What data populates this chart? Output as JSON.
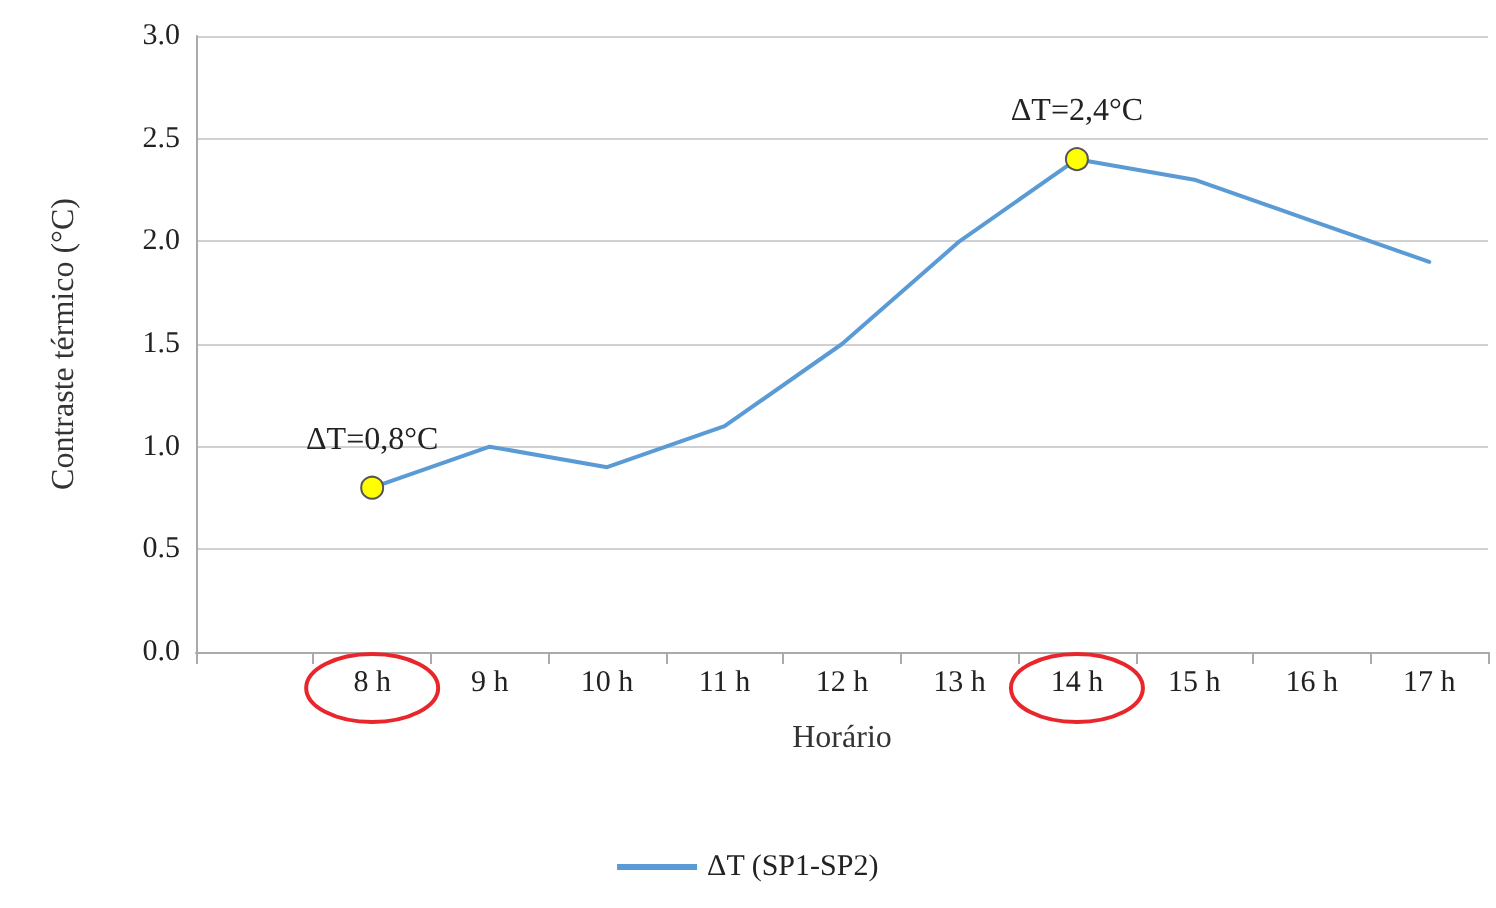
{
  "chart_data": {
    "type": "line",
    "xlabel": "Horário",
    "ylabel": "Contraste térmico (°C)",
    "categories": [
      null,
      "8 h",
      "9 h",
      "10 h",
      "11 h",
      "12 h",
      "13 h",
      "14 h",
      "15 h",
      "16 h",
      "17 h"
    ],
    "series": [
      {
        "name": "ΔT (SP1-SP2)",
        "color": "#5b9bd5",
        "values": [
          null,
          0.8,
          1.0,
          0.9,
          1.1,
          1.5,
          2.0,
          2.4,
          2.3,
          2.1,
          1.9
        ]
      }
    ],
    "ylim": [
      0,
      3
    ],
    "yticks": [
      {
        "value": 0,
        "label": "0.0"
      },
      0.5,
      {
        "value": 1,
        "label": "1.0"
      },
      1.5,
      {
        "value": 2,
        "label": "2.0"
      },
      2.5,
      {
        "value": 3,
        "label": "3.0"
      }
    ],
    "grid": "y",
    "legend": "bottom",
    "marker": "none",
    "line_style": "solid",
    "annotations": [
      {
        "text": "ΔT=0,8°C",
        "x": "8 h",
        "y": 0.8
      },
      {
        "text": "ΔT=2,4°C",
        "x": "14 h",
        "y": 2.4
      }
    ]
  }
}
